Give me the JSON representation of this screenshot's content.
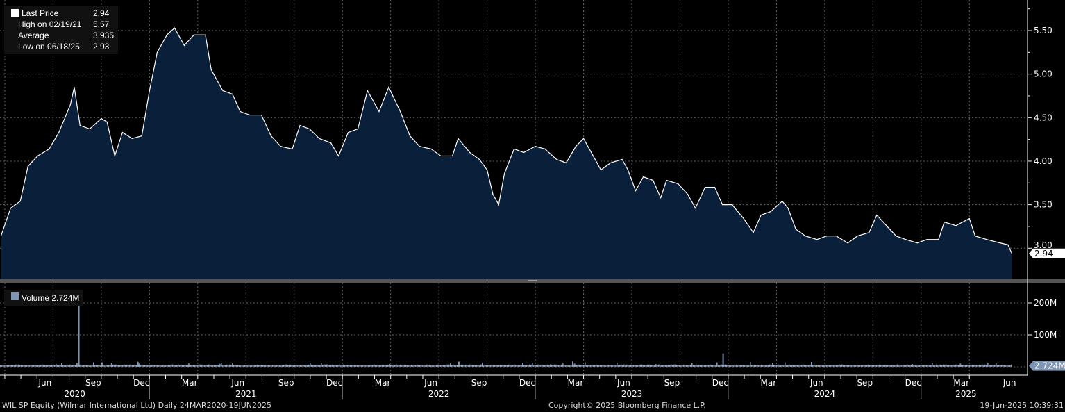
{
  "legend": {
    "last_price_label": "Last Price",
    "last_price": "2.94",
    "high_label": "High on 02/19/21",
    "high": "5.57",
    "average_label": "Average",
    "average": "3.935",
    "low_label": "Low on 06/18/25",
    "low": "2.93"
  },
  "volume_legend": {
    "label": "Volume",
    "value": "2.724M"
  },
  "footer": {
    "ticker": "WIL SP Equity (Wilmar International Ltd)  Daily 24MAR2020-19JUN2025",
    "copyright": "Copyright© 2025 Bloomberg Finance L.P.",
    "timestamp": "19-Jun-2025 10:39:31"
  },
  "colors": {
    "area": "#0a1f3a",
    "line": "#ffffff",
    "volume": "#7f95b4",
    "grid": "#666666"
  },
  "chart_data": [
    {
      "type": "area",
      "title": "Last Price",
      "ylim": [
        2.64,
        5.85
      ],
      "yticks": [
        "3.00",
        "3.50",
        "4.00",
        "4.50",
        "5.00",
        "5.50"
      ],
      "last_label": "2.94",
      "x_range_years": [
        2020.225,
        2025.465
      ],
      "points": [
        [
          2020.23,
          3.14
        ],
        [
          2020.28,
          3.46
        ],
        [
          2020.33,
          3.54
        ],
        [
          2020.37,
          3.94
        ],
        [
          2020.42,
          4.06
        ],
        [
          2020.48,
          4.14
        ],
        [
          2020.53,
          4.33
        ],
        [
          2020.59,
          4.65
        ],
        [
          2020.61,
          4.85
        ],
        [
          2020.64,
          4.41
        ],
        [
          2020.69,
          4.37
        ],
        [
          2020.75,
          4.49
        ],
        [
          2020.78,
          4.45
        ],
        [
          2020.82,
          4.06
        ],
        [
          2020.86,
          4.33
        ],
        [
          2020.91,
          4.26
        ],
        [
          2020.96,
          4.29
        ],
        [
          2021.0,
          4.81
        ],
        [
          2021.04,
          5.25
        ],
        [
          2021.09,
          5.45
        ],
        [
          2021.13,
          5.53
        ],
        [
          2021.18,
          5.33
        ],
        [
          2021.23,
          5.45
        ],
        [
          2021.29,
          5.45
        ],
        [
          2021.32,
          5.05
        ],
        [
          2021.38,
          4.81
        ],
        [
          2021.43,
          4.77
        ],
        [
          2021.47,
          4.57
        ],
        [
          2021.52,
          4.53
        ],
        [
          2021.58,
          4.53
        ],
        [
          2021.63,
          4.29
        ],
        [
          2021.68,
          4.17
        ],
        [
          2021.74,
          4.14
        ],
        [
          2021.78,
          4.41
        ],
        [
          2021.83,
          4.37
        ],
        [
          2021.88,
          4.26
        ],
        [
          2021.94,
          4.21
        ],
        [
          2021.98,
          4.06
        ],
        [
          2022.03,
          4.33
        ],
        [
          2022.08,
          4.37
        ],
        [
          2022.13,
          4.81
        ],
        [
          2022.19,
          4.57
        ],
        [
          2022.24,
          4.85
        ],
        [
          2022.3,
          4.57
        ],
        [
          2022.35,
          4.29
        ],
        [
          2022.4,
          4.17
        ],
        [
          2022.46,
          4.14
        ],
        [
          2022.51,
          4.06
        ],
        [
          2022.57,
          4.06
        ],
        [
          2022.6,
          4.26
        ],
        [
          2022.66,
          4.1
        ],
        [
          2022.71,
          4.02
        ],
        [
          2022.75,
          3.9
        ],
        [
          2022.78,
          3.62
        ],
        [
          2022.81,
          3.5
        ],
        [
          2022.84,
          3.86
        ],
        [
          2022.89,
          4.14
        ],
        [
          2022.94,
          4.1
        ],
        [
          2023.0,
          4.17
        ],
        [
          2023.05,
          4.14
        ],
        [
          2023.11,
          4.02
        ],
        [
          2023.16,
          3.98
        ],
        [
          2023.21,
          4.17
        ],
        [
          2023.25,
          4.26
        ],
        [
          2023.3,
          4.06
        ],
        [
          2023.34,
          3.9
        ],
        [
          2023.39,
          3.98
        ],
        [
          2023.45,
          4.02
        ],
        [
          2023.48,
          3.9
        ],
        [
          2023.52,
          3.66
        ],
        [
          2023.56,
          3.82
        ],
        [
          2023.61,
          3.78
        ],
        [
          2023.65,
          3.58
        ],
        [
          2023.68,
          3.78
        ],
        [
          2023.74,
          3.74
        ],
        [
          2023.79,
          3.62
        ],
        [
          2023.83,
          3.46
        ],
        [
          2023.88,
          3.7
        ],
        [
          2023.93,
          3.7
        ],
        [
          2023.97,
          3.5
        ],
        [
          2024.02,
          3.5
        ],
        [
          2024.08,
          3.34
        ],
        [
          2024.13,
          3.18
        ],
        [
          2024.17,
          3.38
        ],
        [
          2024.22,
          3.42
        ],
        [
          2024.28,
          3.54
        ],
        [
          2024.31,
          3.46
        ],
        [
          2024.35,
          3.22
        ],
        [
          2024.4,
          3.14
        ],
        [
          2024.46,
          3.1
        ],
        [
          2024.51,
          3.14
        ],
        [
          2024.56,
          3.14
        ],
        [
          2024.62,
          3.06
        ],
        [
          2024.67,
          3.14
        ],
        [
          2024.73,
          3.18
        ],
        [
          2024.77,
          3.38
        ],
        [
          2024.82,
          3.26
        ],
        [
          2024.87,
          3.14
        ],
        [
          2024.92,
          3.1
        ],
        [
          2024.98,
          3.06
        ],
        [
          2025.03,
          3.1
        ],
        [
          2025.09,
          3.1
        ],
        [
          2025.12,
          3.3
        ],
        [
          2025.18,
          3.26
        ],
        [
          2025.25,
          3.34
        ],
        [
          2025.28,
          3.14
        ],
        [
          2025.34,
          3.1
        ],
        [
          2025.41,
          3.06
        ],
        [
          2025.45,
          3.04
        ],
        [
          2025.47,
          2.94
        ]
      ]
    },
    {
      "type": "bar",
      "title": "Volume",
      "ylim": [
        0,
        265
      ],
      "unit": "M",
      "yticks": [
        "100M",
        "200M"
      ],
      "last_label": "2.724M",
      "baseline_m": 5,
      "spikes": [
        [
          2020.63,
          215
        ],
        [
          2020.62,
          12
        ],
        [
          2020.75,
          14
        ],
        [
          2020.8,
          12
        ],
        [
          2020.94,
          10
        ],
        [
          2021.2,
          10
        ],
        [
          2022.24,
          9
        ],
        [
          2022.6,
          16
        ],
        [
          2023.2,
          10
        ],
        [
          2023.97,
          42
        ],
        [
          2024.95,
          9
        ],
        [
          2025.2,
          10
        ]
      ]
    }
  ],
  "x_axis": {
    "months": [
      "Jun",
      "Sep",
      "Dec",
      "Mar",
      "Jun",
      "Sep",
      "Dec",
      "Mar",
      "Jun",
      "Sep",
      "Dec",
      "Mar",
      "Jun",
      "Sep",
      "Dec",
      "Mar",
      "Jun",
      "Sep",
      "Dec",
      "Mar",
      "Jun"
    ],
    "years": [
      "2020",
      "2021",
      "2022",
      "2023",
      "2024",
      "2025"
    ]
  }
}
